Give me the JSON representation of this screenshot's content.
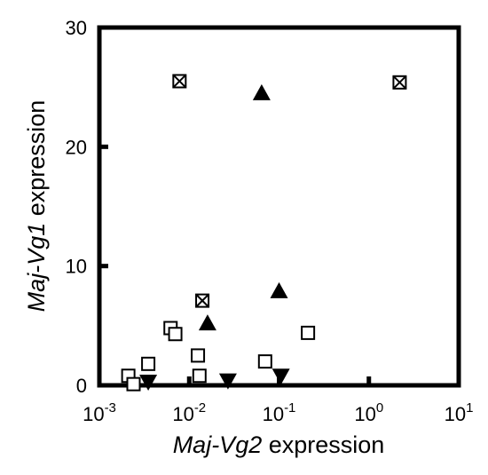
{
  "chart_data": {
    "type": "scatter",
    "xscale": "log",
    "xlim": [
      0.001,
      10
    ],
    "ylim": [
      0,
      30
    ],
    "grid": false,
    "xlabel": {
      "italic": "Maj-Vg2",
      "rest": " expression"
    },
    "ylabel": {
      "italic": "Maj-Vg1",
      "rest": " expression"
    },
    "xticks": [
      {
        "value": 0.001,
        "base": "10",
        "exp": "-3"
      },
      {
        "value": 0.01,
        "base": "10",
        "exp": "-2"
      },
      {
        "value": 0.1,
        "base": "10",
        "exp": "-1"
      },
      {
        "value": 1,
        "base": "10",
        "exp": "0"
      },
      {
        "value": 10,
        "base": "10",
        "exp": "1"
      }
    ],
    "yticks": [
      {
        "value": 0,
        "label": "0"
      },
      {
        "value": 10,
        "label": "10"
      },
      {
        "value": 20,
        "label": "20"
      },
      {
        "value": 30,
        "label": "30"
      }
    ],
    "series": [
      {
        "marker": "open-square",
        "points": [
          [
            0.0021,
            0.8
          ],
          [
            0.0024,
            0.1
          ],
          [
            0.0035,
            1.8
          ],
          [
            0.0062,
            4.8
          ],
          [
            0.007,
            4.3
          ],
          [
            0.0125,
            2.5
          ],
          [
            0.013,
            0.8
          ],
          [
            0.07,
            2.0
          ],
          [
            0.21,
            4.4
          ]
        ]
      },
      {
        "marker": "crossed-square",
        "points": [
          [
            0.0078,
            25.5
          ],
          [
            0.014,
            7.1
          ],
          [
            2.2,
            25.4
          ]
        ]
      },
      {
        "marker": "triangle-up",
        "points": [
          [
            0.064,
            24.5
          ],
          [
            0.1,
            7.9
          ],
          [
            0.016,
            5.2
          ]
        ]
      },
      {
        "marker": "triangle-down",
        "points": [
          [
            0.0035,
            0.3
          ],
          [
            0.027,
            0.4
          ],
          [
            0.105,
            0.8
          ]
        ]
      }
    ],
    "colors": {
      "marker": "#000000",
      "frame": "#000000",
      "background": "#ffffff"
    }
  }
}
